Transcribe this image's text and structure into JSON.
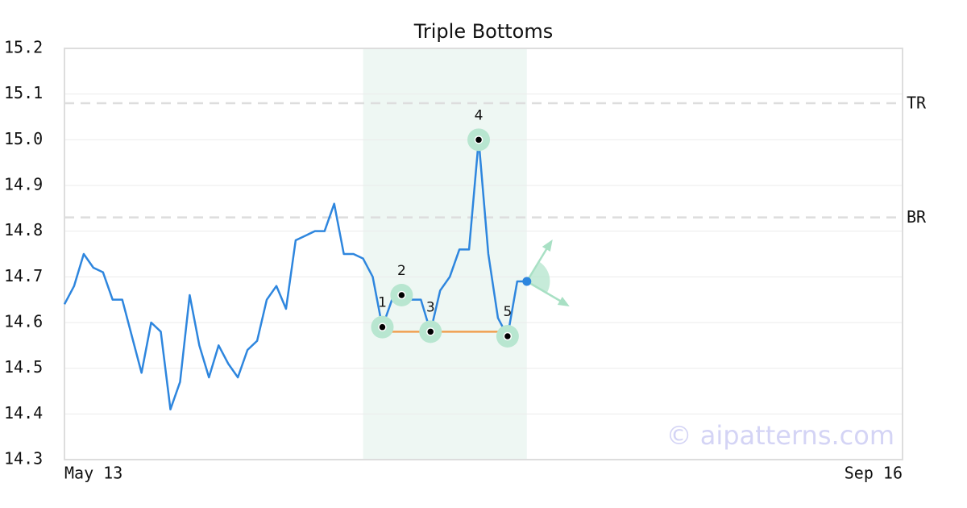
{
  "chart_data": {
    "type": "line",
    "title": "Triple Bottoms",
    "x": [
      0,
      1,
      2,
      3,
      4,
      5,
      6,
      7,
      8,
      9,
      10,
      11,
      12,
      13,
      14,
      15,
      16,
      17,
      18,
      19,
      20,
      21,
      22,
      23,
      24,
      25,
      26,
      27,
      28,
      29,
      30,
      31,
      32,
      33,
      34,
      35,
      36,
      37,
      38,
      39,
      40,
      41,
      42,
      43,
      44,
      45,
      46,
      47,
      48
    ],
    "series": [
      {
        "color": "#2e86de",
        "values": [
          14.64,
          14.68,
          14.75,
          14.72,
          14.71,
          14.65,
          14.65,
          14.57,
          14.49,
          14.6,
          14.58,
          14.41,
          14.47,
          14.66,
          14.55,
          14.48,
          14.55,
          14.51,
          14.48,
          14.54,
          14.56,
          14.65,
          14.68,
          14.63,
          14.78,
          14.79,
          14.8,
          14.8,
          14.86,
          14.75,
          14.75,
          14.74,
          14.7,
          14.59,
          14.65,
          14.66,
          14.65,
          14.65,
          14.58,
          14.67,
          14.7,
          14.76,
          14.76,
          15.0,
          14.75,
          14.61,
          14.57,
          14.69,
          14.69
        ]
      }
    ],
    "xlim": [
      0,
      87
    ],
    "xticks": [
      {
        "value": 0,
        "label": "May 13"
      },
      {
        "value": 87,
        "label": "Sep 16"
      }
    ],
    "ylim": [
      14.3,
      15.2
    ],
    "yticks": [
      14.3,
      14.4,
      14.5,
      14.6,
      14.7,
      14.8,
      14.9,
      {
        "value": 15,
        "label": "15.0"
      },
      15.1,
      15.2
    ],
    "grid": true,
    "zone": {
      "xlim": [
        31,
        48
      ],
      "color": "#eef7f3"
    },
    "pattern_points": {
      "labels": [
        "1",
        "2",
        "3",
        "4",
        "5"
      ],
      "x": [
        33,
        35,
        38,
        43,
        46
      ],
      "values": [
        14.59,
        14.66,
        14.58,
        15.0,
        14.57
      ],
      "color": "#b8e6d0"
    },
    "support": {
      "x": [
        33,
        46
      ],
      "values": [
        14.58,
        14.58
      ],
      "color": "#f0a050"
    },
    "levels": [
      {
        "label": "TR",
        "value": 15.08
      },
      {
        "label": "BR",
        "value": 14.83
      }
    ],
    "watermark": "© aipatterns.com"
  }
}
